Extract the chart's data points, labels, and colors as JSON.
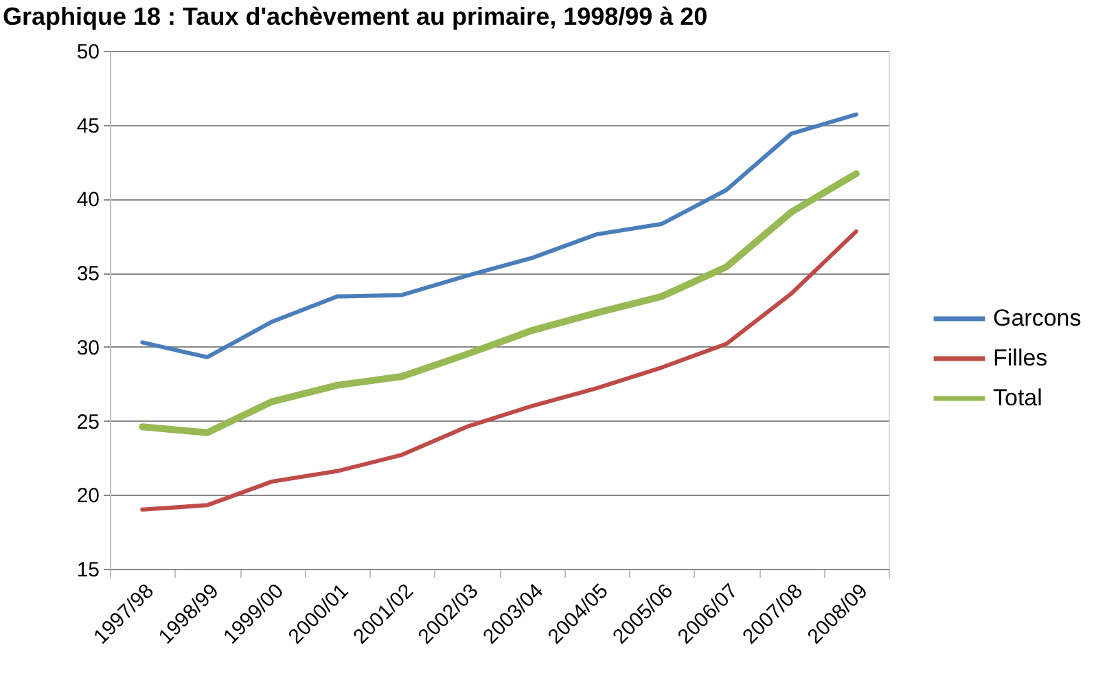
{
  "chart_data": {
    "type": "line",
    "title": "Graphique 18 : Taux d'achèvement au primaire, 1998/99 à 20",
    "categories": [
      "1997/98",
      "1998/99",
      "1999/00",
      "2000/01",
      "2001/02",
      "2002/03",
      "2003/04",
      "2004/05",
      "2005/06",
      "2006/07",
      "2007/08",
      "2008/09"
    ],
    "series": [
      {
        "name": "Garcons",
        "color": "#4a7ebb",
        "values": [
          30.3,
          29.3,
          31.7,
          33.4,
          33.5,
          34.8,
          36.0,
          37.6,
          38.3,
          40.6,
          44.4,
          45.7
        ]
      },
      {
        "name": "Filles",
        "color": "#be4b48",
        "values": [
          19.0,
          19.3,
          20.9,
          21.6,
          22.7,
          24.6,
          26.0,
          27.2,
          28.6,
          30.2,
          33.6,
          37.8
        ]
      },
      {
        "name": "Total",
        "color": "#98b954",
        "values": [
          24.6,
          24.2,
          26.3,
          27.4,
          28.0,
          29.5,
          31.1,
          32.3,
          33.4,
          35.4,
          39.1,
          41.7
        ]
      }
    ],
    "ylim": [
      15,
      50
    ],
    "yticks": [
      15,
      20,
      25,
      30,
      35,
      40,
      45,
      50
    ],
    "grid": "y",
    "legend": "right",
    "line_style": "solid"
  }
}
